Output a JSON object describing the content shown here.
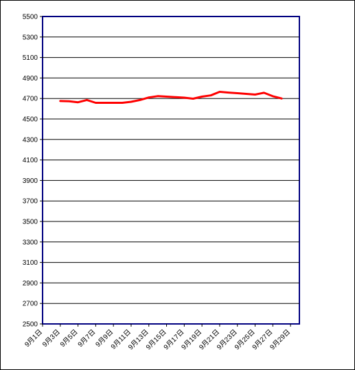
{
  "chart_data": {
    "type": "line",
    "title": "",
    "xlabel": "",
    "ylabel": "",
    "ylim": [
      2500,
      5500
    ],
    "yticks": [
      2500,
      2700,
      2900,
      3100,
      3300,
      3500,
      3700,
      3900,
      4100,
      4300,
      4500,
      4700,
      4900,
      5100,
      5300,
      5500
    ],
    "xlim": [
      1,
      30
    ],
    "xtick_days": [
      1,
      3,
      5,
      7,
      9,
      11,
      13,
      15,
      17,
      19,
      21,
      23,
      25,
      27,
      29
    ],
    "xtick_labels": [
      "9月1日",
      "9月3日",
      "9月5日",
      "9月7日",
      "9月9日",
      "9月11日",
      "9月13日",
      "9月15日",
      "9月17日",
      "9月19日",
      "9月21日",
      "9月23日",
      "9月25日",
      "9月27日",
      "9月29日"
    ],
    "grid": true,
    "series": [
      {
        "color": "#ff0000",
        "x": [
          3,
          4,
          5,
          6,
          7,
          8,
          9,
          10,
          11,
          12,
          13,
          14,
          15,
          16,
          17,
          18,
          19,
          20,
          21,
          22,
          23,
          24,
          25,
          26,
          27,
          28
        ],
        "values": [
          4675,
          4673,
          4663,
          4685,
          4658,
          4658,
          4658,
          4658,
          4668,
          4685,
          4710,
          4723,
          4718,
          4713,
          4708,
          4698,
          4718,
          4730,
          4765,
          4758,
          4752,
          4745,
          4738,
          4756,
          4722,
          4700
        ]
      }
    ]
  }
}
